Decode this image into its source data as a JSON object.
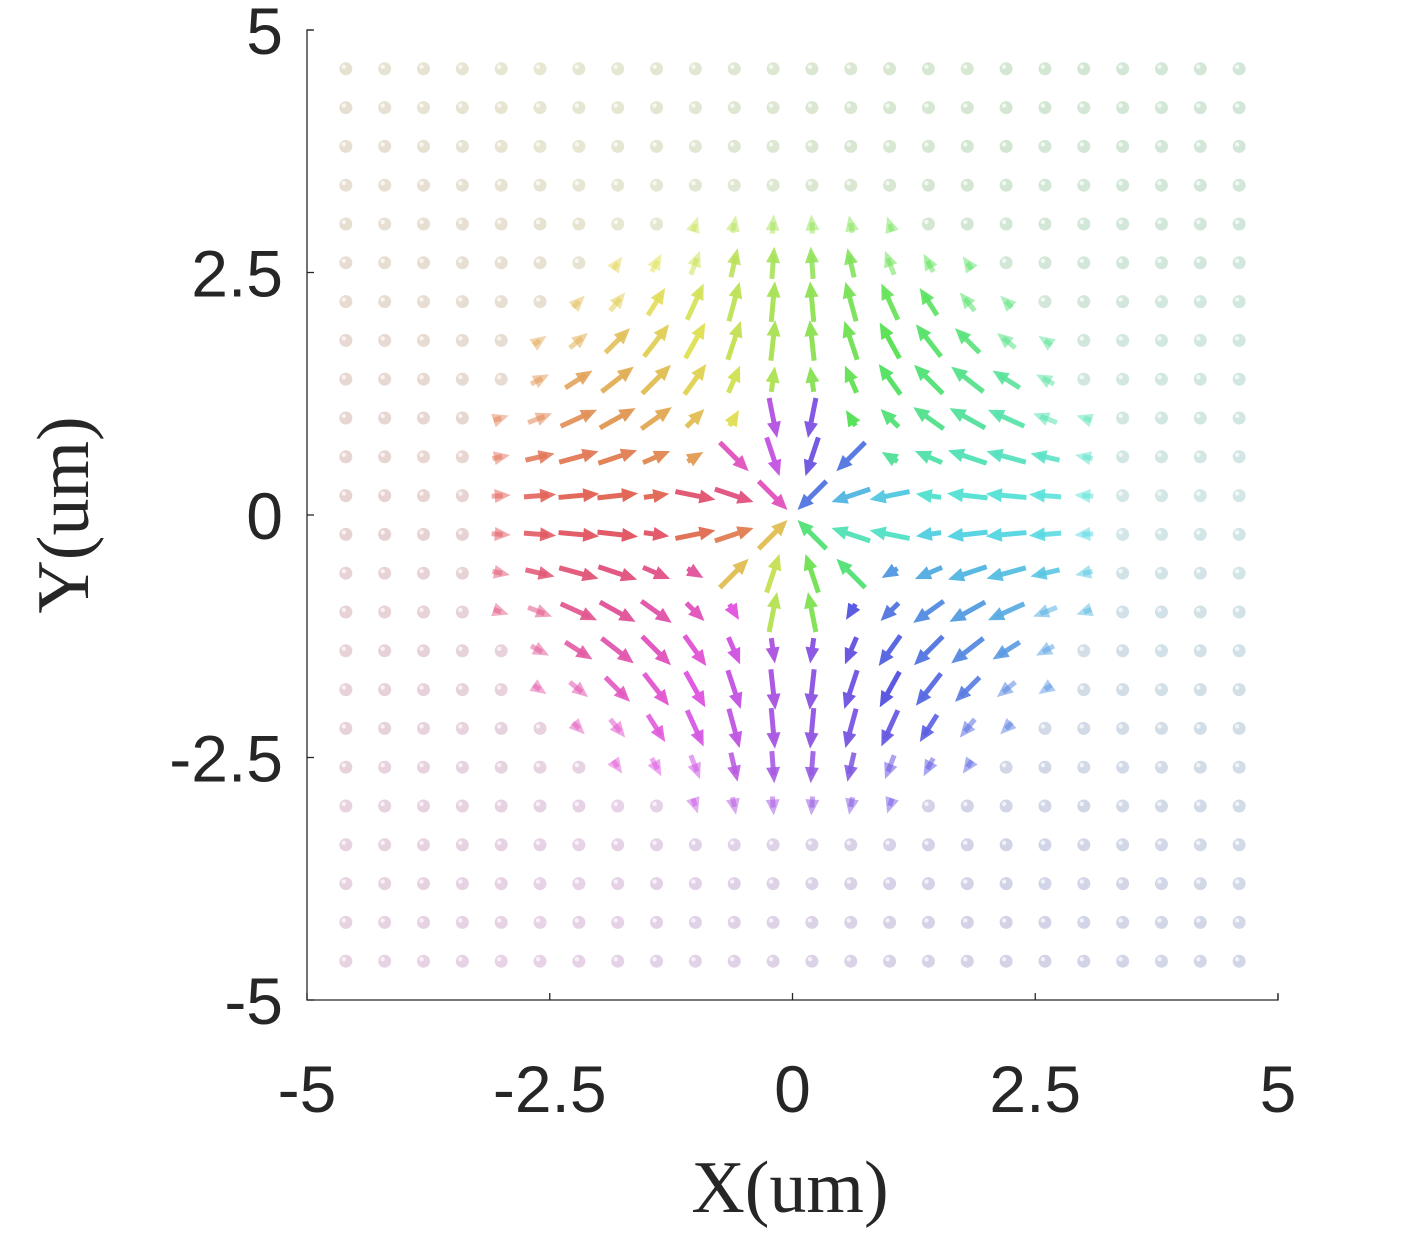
{
  "chart_data": {
    "type": "quiver",
    "title": "",
    "xlabel": "X(um)",
    "ylabel": "Y(um)",
    "xlim": [
      -5,
      5
    ],
    "ylim": [
      -5,
      5
    ],
    "xticks": [
      -5,
      -2.5,
      0,
      2.5,
      5
    ],
    "yticks": [
      -5,
      -2.5,
      0,
      2.5,
      5
    ],
    "xtick_labels": [
      "-5",
      "-2.5",
      "0",
      "2.5",
      "5"
    ],
    "ytick_labels": [
      "-5",
      "-2.5",
      "0",
      "2.5",
      "5"
    ],
    "grid": false,
    "legend": "none",
    "sample_grid": {
      "x": [
        -4.6,
        -4.2,
        -3.8,
        -3.4,
        -3.0,
        -2.6,
        -2.2,
        -1.8,
        -1.4,
        -1.0,
        -0.6,
        -0.2,
        0.2,
        0.6,
        1.0,
        1.4,
        1.8,
        2.2,
        2.6,
        3.0,
        3.4,
        3.8,
        4.2,
        4.6
      ],
      "y": [
        4.6,
        4.2,
        3.8,
        3.4,
        3.0,
        2.6,
        2.2,
        1.8,
        1.4,
        1.0,
        0.6,
        0.2,
        -0.2,
        -0.6,
        -1.0,
        -1.4,
        -1.8,
        -2.2,
        -2.6,
        -3.0,
        -3.4,
        -3.8,
        -4.2,
        -4.6
      ]
    },
    "field": {
      "description_colors": "hue encodes in-plane direction, opacity fades with radius",
      "skyrmion_radius": 2.1,
      "domain_wall_width": 1.0,
      "outer_fade_radius": 5.2
    },
    "colors": {
      "axis": "#262626",
      "core_dot": "#2b2b2b"
    }
  }
}
